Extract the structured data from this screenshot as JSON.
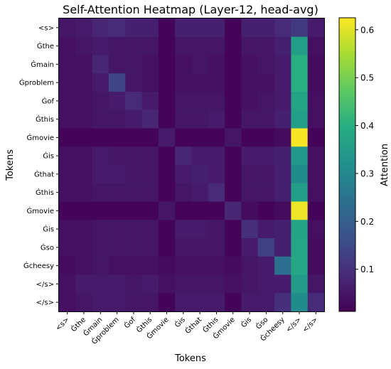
{
  "chart_data": {
    "type": "heatmap",
    "title": "Self-Attention Heatmap (Layer-12, head-avg)",
    "xlabel": "Tokens",
    "ylabel": "Tokens",
    "colorbar_label": "Attention",
    "colormap": "viridis",
    "vmin": 0.012,
    "vmax": 0.625,
    "colorbar_ticks": [
      0.1,
      0.2,
      0.3,
      0.4,
      0.5,
      0.6
    ],
    "row_labels": [
      "<s>",
      "Ġthe",
      "Ġmain",
      "Ġproblem",
      "Ġof",
      "Ġthis",
      "Ġmovie",
      "Ġis",
      "Ġthat",
      "Ġthis",
      "Ġmovie",
      "Ġis",
      "Ġso",
      "Ġcheesy",
      "</s>",
      "</s>"
    ],
    "col_labels": [
      "<s>",
      "Ġthe",
      "Ġmain",
      "Ġproblem",
      "Ġof",
      "Ġthis",
      "Ġmovie",
      "Ġis",
      "Ġthat",
      "Ġthis",
      "Ġmovie",
      "Ġis",
      "Ġso",
      "Ġcheesy",
      "</s>",
      "</s>"
    ],
    "values": [
      [
        0.05,
        0.06,
        0.08,
        0.09,
        0.07,
        0.07,
        0.02,
        0.07,
        0.07,
        0.07,
        0.02,
        0.07,
        0.07,
        0.09,
        0.12,
        0.06
      ],
      [
        0.04,
        0.05,
        0.06,
        0.05,
        0.05,
        0.05,
        0.02,
        0.05,
        0.05,
        0.05,
        0.02,
        0.05,
        0.05,
        0.07,
        0.36,
        0.04
      ],
      [
        0.04,
        0.04,
        0.08,
        0.05,
        0.05,
        0.04,
        0.02,
        0.04,
        0.05,
        0.04,
        0.02,
        0.04,
        0.05,
        0.06,
        0.4,
        0.03
      ],
      [
        0.04,
        0.04,
        0.06,
        0.14,
        0.05,
        0.04,
        0.02,
        0.04,
        0.04,
        0.04,
        0.02,
        0.04,
        0.04,
        0.06,
        0.4,
        0.03
      ],
      [
        0.04,
        0.04,
        0.05,
        0.06,
        0.09,
        0.06,
        0.02,
        0.05,
        0.05,
        0.05,
        0.02,
        0.04,
        0.05,
        0.06,
        0.37,
        0.04
      ],
      [
        0.04,
        0.04,
        0.05,
        0.05,
        0.06,
        0.08,
        0.02,
        0.05,
        0.05,
        0.06,
        0.02,
        0.05,
        0.05,
        0.07,
        0.36,
        0.04
      ],
      [
        0.02,
        0.02,
        0.02,
        0.02,
        0.02,
        0.02,
        0.06,
        0.02,
        0.02,
        0.02,
        0.05,
        0.02,
        0.02,
        0.03,
        0.62,
        0.02
      ],
      [
        0.04,
        0.04,
        0.06,
        0.05,
        0.05,
        0.05,
        0.02,
        0.08,
        0.06,
        0.06,
        0.02,
        0.06,
        0.06,
        0.07,
        0.34,
        0.04
      ],
      [
        0.04,
        0.04,
        0.06,
        0.06,
        0.05,
        0.05,
        0.02,
        0.06,
        0.07,
        0.06,
        0.02,
        0.05,
        0.05,
        0.07,
        0.31,
        0.04
      ],
      [
        0.04,
        0.04,
        0.05,
        0.05,
        0.05,
        0.05,
        0.02,
        0.05,
        0.06,
        0.09,
        0.02,
        0.05,
        0.05,
        0.07,
        0.36,
        0.04
      ],
      [
        0.02,
        0.02,
        0.02,
        0.02,
        0.02,
        0.02,
        0.05,
        0.02,
        0.02,
        0.02,
        0.08,
        0.03,
        0.02,
        0.03,
        0.61,
        0.02
      ],
      [
        0.04,
        0.04,
        0.05,
        0.05,
        0.05,
        0.05,
        0.02,
        0.06,
        0.06,
        0.05,
        0.02,
        0.1,
        0.06,
        0.07,
        0.37,
        0.04
      ],
      [
        0.04,
        0.04,
        0.05,
        0.05,
        0.05,
        0.05,
        0.02,
        0.05,
        0.05,
        0.05,
        0.02,
        0.06,
        0.13,
        0.07,
        0.38,
        0.03
      ],
      [
        0.03,
        0.04,
        0.05,
        0.04,
        0.04,
        0.04,
        0.03,
        0.04,
        0.04,
        0.04,
        0.03,
        0.05,
        0.06,
        0.24,
        0.38,
        0.03
      ],
      [
        0.04,
        0.06,
        0.06,
        0.06,
        0.05,
        0.06,
        0.04,
        0.05,
        0.05,
        0.05,
        0.04,
        0.05,
        0.06,
        0.06,
        0.35,
        0.05
      ],
      [
        0.04,
        0.05,
        0.06,
        0.06,
        0.05,
        0.05,
        0.02,
        0.06,
        0.06,
        0.06,
        0.02,
        0.06,
        0.06,
        0.1,
        0.31,
        0.09
      ]
    ]
  }
}
